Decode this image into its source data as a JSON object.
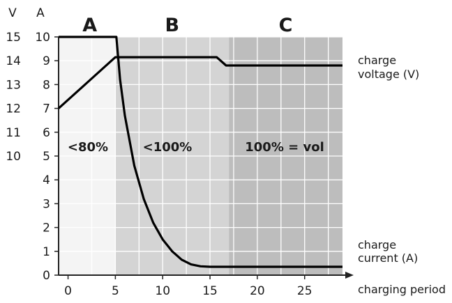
{
  "chart_data": {
    "type": "line",
    "x_axis": {
      "label": "charging period",
      "range": [
        -1,
        29
      ],
      "ticks": [
        0,
        5,
        10,
        15,
        20,
        25
      ]
    },
    "y_axes": [
      {
        "unit": "A",
        "range": [
          0,
          10
        ],
        "ticks": [
          0,
          1,
          2,
          3,
          4,
          5,
          6,
          7,
          8,
          9,
          10
        ]
      },
      {
        "unit": "V",
        "ticks": [
          15,
          14,
          13,
          12,
          11,
          10
        ]
      }
    ],
    "phases": [
      {
        "label": "A",
        "x_range": [
          -1,
          5
        ],
        "zone_label": "<80%",
        "color": "#f4f4f4"
      },
      {
        "label": "B",
        "x_range": [
          5,
          17
        ],
        "zone_label": "<100%",
        "color": "#d4d4d4"
      },
      {
        "label": "C",
        "x_range": [
          17,
          29
        ],
        "zone_label": "100% = vol",
        "color": "#bdbdbd"
      }
    ],
    "series": [
      {
        "name": "charge voltage (V)",
        "label_lines": [
          "charge",
          "voltage (V)"
        ],
        "points": [
          [
            -1,
            7.0
          ],
          [
            5,
            9.15
          ],
          [
            15.7,
            9.15
          ],
          [
            16.7,
            8.8
          ],
          [
            29,
            8.8
          ]
        ]
      },
      {
        "name": "charge current (A)",
        "label_lines": [
          "charge",
          "current (A)"
        ],
        "points": [
          [
            -1,
            10.0
          ],
          [
            5.1,
            10.0
          ],
          [
            5.5,
            8.2
          ],
          [
            6,
            6.7
          ],
          [
            7,
            4.6
          ],
          [
            8,
            3.2
          ],
          [
            9,
            2.2
          ],
          [
            10,
            1.5
          ],
          [
            11,
            1.0
          ],
          [
            12,
            0.65
          ],
          [
            13,
            0.45
          ],
          [
            14,
            0.37
          ],
          [
            15,
            0.35
          ],
          [
            29,
            0.35
          ]
        ]
      }
    ],
    "grid": true,
    "colors": {
      "line": "#000000",
      "grid": "#ffffff",
      "axis": "#222222"
    }
  }
}
